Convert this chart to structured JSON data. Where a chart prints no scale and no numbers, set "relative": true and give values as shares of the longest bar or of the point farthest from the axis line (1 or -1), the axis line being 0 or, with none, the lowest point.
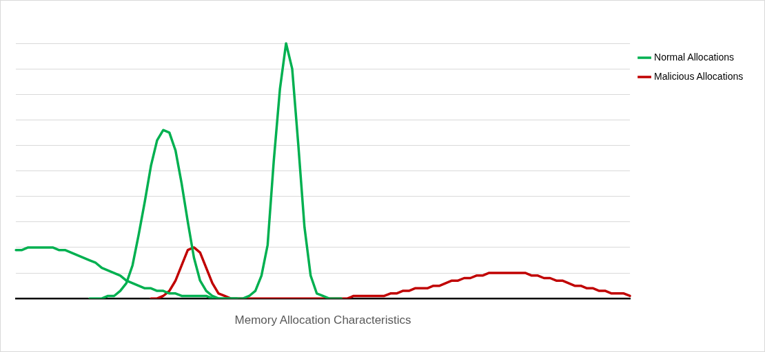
{
  "chart_data": {
    "type": "line",
    "xlabel": "Memory Allocation Characteristics",
    "relative": true,
    "grid": "y",
    "legend": "right",
    "marker": "none",
    "line_style": "solid",
    "categories": [
      null,
      null,
      null,
      null,
      null,
      null,
      null,
      null,
      null,
      null,
      null,
      null,
      null,
      null,
      null,
      null,
      null,
      null,
      null,
      null,
      null,
      null,
      null,
      null,
      null,
      null,
      null,
      null,
      null,
      null,
      null,
      null,
      null,
      null,
      null,
      null,
      null,
      null,
      null,
      null,
      null,
      null,
      null,
      null,
      null,
      null,
      null,
      null,
      null,
      null,
      null,
      null,
      null,
      null,
      null,
      null,
      null,
      null,
      null,
      null,
      null,
      null,
      null,
      null,
      null,
      null,
      null,
      null,
      null,
      null,
      null,
      null,
      null,
      null,
      null,
      null,
      null,
      null,
      null,
      null,
      null,
      null,
      null,
      null,
      null,
      null,
      null,
      null,
      null,
      null,
      null,
      null,
      null,
      null,
      null,
      null,
      null,
      null,
      null,
      null,
      null
    ],
    "series": [
      {
        "name": "Normal Allocations",
        "color": "#00b050",
        "values": [
          0.19,
          0.19,
          0.2,
          0.2,
          0.2,
          0.2,
          0.2,
          0.19,
          0.19,
          0.18,
          0.17,
          0.16,
          0.15,
          0.14,
          0.12,
          0.11,
          0.1,
          0.09,
          0.07,
          0.06,
          0.05,
          0.04,
          0.04,
          0.03,
          0.03,
          0.02,
          0.02,
          0.01,
          0.01,
          0.01,
          0.01,
          0.01,
          0,
          0,
          0,
          0,
          0,
          null,
          null,
          null,
          null,
          null,
          null,
          null,
          null,
          null,
          null,
          null,
          null,
          null,
          null,
          null,
          null,
          null,
          null,
          null,
          null,
          null,
          null,
          null,
          null,
          null,
          null,
          null,
          null,
          null,
          null,
          null,
          null,
          null,
          null,
          null,
          null,
          null,
          null,
          null,
          null,
          null,
          null,
          null,
          null,
          null,
          null,
          null,
          null,
          null,
          null,
          null,
          null,
          null,
          null,
          null,
          null,
          null,
          null,
          null,
          null,
          null,
          null,
          null,
          null
        ]
      },
      {
        "color": "#00b050",
        "values": [
          null,
          null,
          null,
          null,
          null,
          null,
          null,
          null,
          null,
          null,
          null,
          null,
          0,
          0,
          0,
          0.01,
          0.01,
          0.03,
          0.06,
          0.13,
          0.25,
          0.38,
          0.52,
          0.62,
          0.66,
          0.65,
          0.58,
          0.45,
          0.3,
          0.16,
          0.07,
          0.03,
          0.01,
          0,
          0,
          0,
          0,
          0,
          0.01,
          0.03,
          0.09,
          0.21,
          0.54,
          0.82,
          1,
          0.9,
          0.6,
          0.28,
          0.09,
          0.02,
          0.01,
          0,
          0,
          0,
          null,
          null,
          null,
          null,
          null,
          null,
          null,
          null,
          null,
          null,
          null,
          null,
          null,
          null,
          null,
          null,
          null,
          null,
          null,
          null,
          null,
          null,
          null,
          null,
          null,
          null,
          null,
          null,
          null,
          null,
          null,
          null,
          null,
          null,
          null,
          null,
          null,
          null,
          null,
          null,
          null,
          null,
          null,
          null,
          null,
          null,
          null
        ]
      },
      {
        "name": "Malicious Allocations",
        "color": "#c00000",
        "values": [
          null,
          null,
          null,
          null,
          null,
          null,
          null,
          null,
          null,
          null,
          null,
          null,
          null,
          null,
          null,
          null,
          null,
          null,
          null,
          null,
          null,
          null,
          0,
          0,
          0.01,
          0.03,
          0.07,
          0.13,
          0.19,
          0.2,
          0.18,
          0.12,
          0.06,
          0.02,
          0.01,
          0,
          0,
          0,
          0,
          0,
          0,
          0,
          0,
          0,
          0,
          0,
          0,
          0,
          0,
          0,
          0,
          0,
          0,
          0,
          0,
          0.01,
          0.01,
          0.01,
          0.01,
          0.01,
          0.01,
          0.02,
          0.02,
          0.03,
          0.03,
          0.04,
          0.04,
          0.04,
          0.05,
          0.05,
          0.06,
          0.07,
          0.07,
          0.08,
          0.08,
          0.09,
          0.09,
          0.1,
          0.1,
          0.1,
          0.1,
          0.1,
          0.1,
          0.1,
          0.09,
          0.09,
          0.08,
          0.08,
          0.07,
          0.07,
          0.06,
          0.05,
          0.05,
          0.04,
          0.04,
          0.03,
          0.03,
          0.02,
          0.02,
          0.02,
          0.01
        ]
      }
    ]
  }
}
